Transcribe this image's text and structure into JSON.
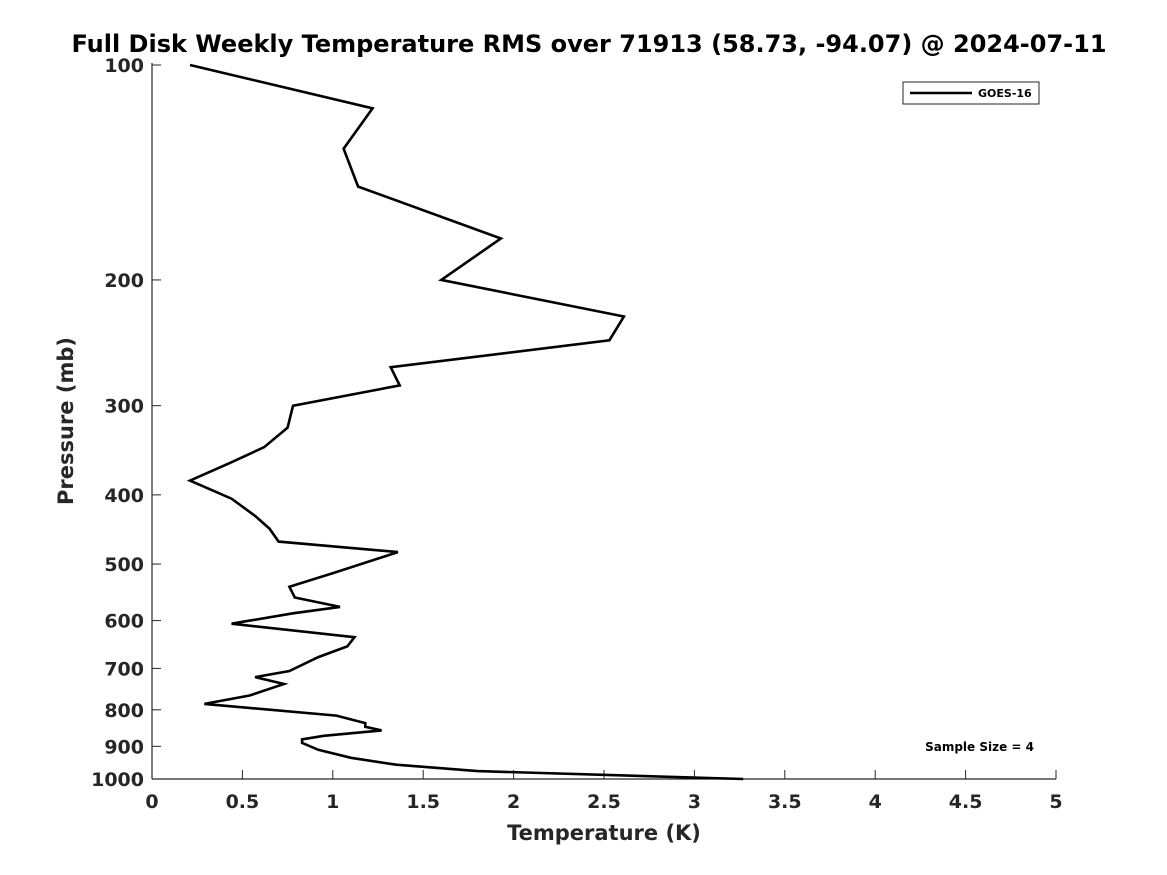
{
  "chart_data": {
    "type": "line",
    "title": "Full Disk Weekly Temperature RMS over 71913 (58.73, -94.07) @ 2024-07-11",
    "xlabel": "Temperature (K)",
    "ylabel": "Pressure (mb)",
    "xlim": [
      0,
      5
    ],
    "ylim": [
      100,
      1000
    ],
    "y_scale": "log",
    "y_reversed": true,
    "x_ticks": [
      0,
      0.5,
      1,
      1.5,
      2,
      2.5,
      3,
      3.5,
      4,
      4.5,
      5
    ],
    "x_tick_labels": [
      "0",
      "0.5",
      "1",
      "1.5",
      "2",
      "2.5",
      "3",
      "3.5",
      "4",
      "4.5",
      "5"
    ],
    "y_ticks": [
      100,
      200,
      300,
      400,
      500,
      600,
      700,
      800,
      900,
      1000
    ],
    "y_tick_labels": [
      "100",
      "200",
      "300",
      "400",
      "500",
      "600",
      "700",
      "800",
      "900",
      "1000"
    ],
    "grid": false,
    "legend_position": "top-right",
    "annotation": "Sample Size = 4",
    "series": [
      {
        "name": "GOES-16",
        "color": "#000000",
        "points": [
          [
            0.21,
            100
          ],
          [
            1.22,
            115
          ],
          [
            1.06,
            131
          ],
          [
            1.14,
            148
          ],
          [
            1.93,
            175
          ],
          [
            1.6,
            200
          ],
          [
            2.61,
            225
          ],
          [
            2.53,
            243
          ],
          [
            1.32,
            265
          ],
          [
            1.37,
            281
          ],
          [
            0.78,
            300
          ],
          [
            0.75,
            322
          ],
          [
            0.62,
            343
          ],
          [
            0.43,
            361
          ],
          [
            0.21,
            382
          ],
          [
            0.44,
            405
          ],
          [
            0.57,
            428
          ],
          [
            0.65,
            446
          ],
          [
            0.7,
            465
          ],
          [
            1.36,
            481
          ],
          [
            1.01,
            514
          ],
          [
            0.76,
            538
          ],
          [
            0.79,
            557
          ],
          [
            1.04,
            574
          ],
          [
            0.78,
            586
          ],
          [
            0.44,
            606
          ],
          [
            1.12,
            633
          ],
          [
            1.08,
            652
          ],
          [
            0.92,
            675
          ],
          [
            0.76,
            706
          ],
          [
            0.57,
            720
          ],
          [
            0.73,
            736
          ],
          [
            0.54,
            764
          ],
          [
            0.29,
            785
          ],
          [
            1.02,
            815
          ],
          [
            1.18,
            835
          ],
          [
            1.18,
            845
          ],
          [
            1.27,
            855
          ],
          [
            0.95,
            870
          ],
          [
            0.83,
            880
          ],
          [
            0.83,
            890
          ],
          [
            0.92,
            910
          ],
          [
            1.1,
            934
          ],
          [
            1.35,
            955
          ],
          [
            1.8,
            975
          ],
          [
            3.27,
            1000
          ]
        ]
      }
    ]
  }
}
